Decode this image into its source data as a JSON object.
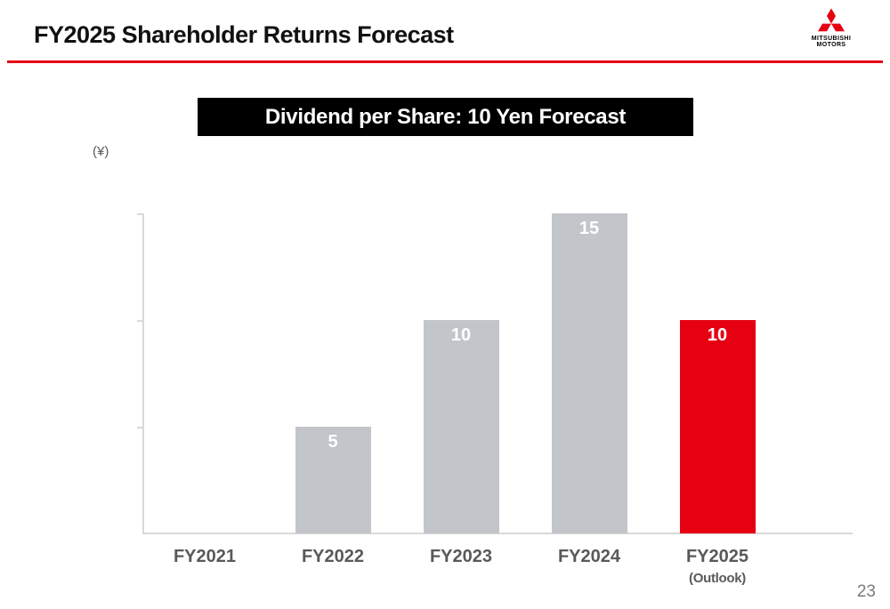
{
  "header": {
    "title": "FY2025 Shareholder Returns Forecast",
    "logo": {
      "line1": "MITSUBISHI",
      "line2": "MOTORS"
    }
  },
  "banner": {
    "text": "Dividend per Share: 10 Yen Forecast"
  },
  "footer": {
    "page_number": "23"
  },
  "colors": {
    "accent": "#e60012",
    "bar_gray": "#c2c5c9",
    "bar_red": "#e60012",
    "axis": "#d9d9d9"
  },
  "chart_data": {
    "type": "bar",
    "title": "Dividend per Share: 10 Yen Forecast",
    "unit_label": "(¥)",
    "categories": [
      "FY2021",
      "FY2022",
      "FY2023",
      "FY2024",
      "FY2025"
    ],
    "category_subnotes": [
      "",
      "",
      "",
      "",
      "(Outlook)"
    ],
    "values": [
      0,
      5,
      10,
      15,
      10
    ],
    "data_labels": [
      "",
      "5",
      "10",
      "15",
      "10"
    ],
    "bar_colors": [
      "#c2c5c9",
      "#c2c5c9",
      "#c2c5c9",
      "#c2c5c9",
      "#e60012"
    ],
    "ylim": [
      0,
      15
    ],
    "grid": false,
    "legend": "none"
  }
}
